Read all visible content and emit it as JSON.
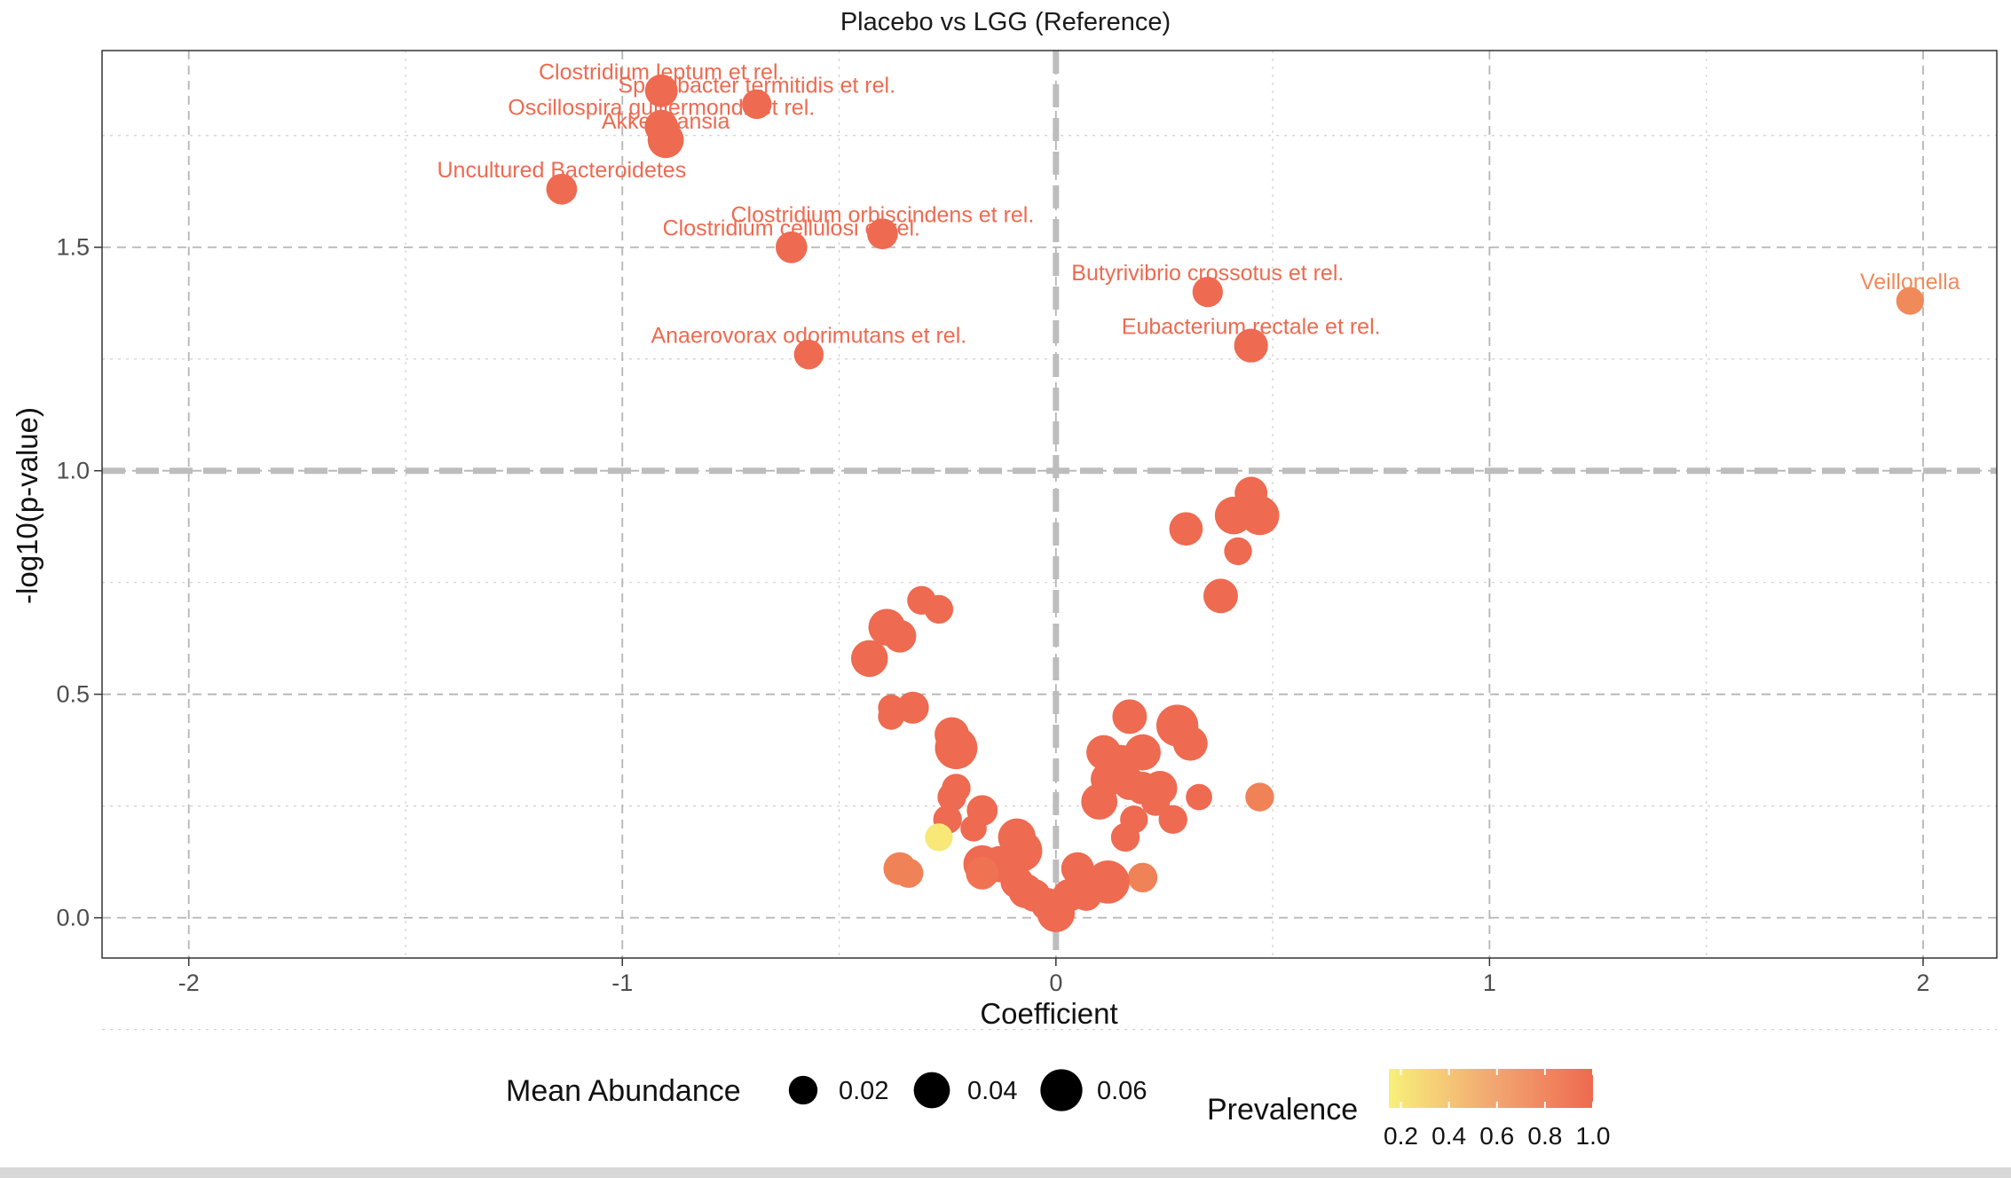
{
  "chart_data": {
    "type": "scatter",
    "title": "Placebo vs LGG (Reference)",
    "xlabel": "Coefficient",
    "ylabel": "-log10(p-value)",
    "xlim": [
      -2.2,
      2.17
    ],
    "ylim": [
      -0.09,
      1.94
    ],
    "x_ticks": [
      -2,
      -1,
      0,
      1,
      2
    ],
    "x_tick_labels": [
      "-2",
      "-1",
      "0",
      "1",
      "2"
    ],
    "y_ticks": [
      0.0,
      0.5,
      1.0,
      1.5
    ],
    "y_tick_labels": [
      "0.0",
      "0.5",
      "1.0",
      "1.5"
    ],
    "grid": true,
    "threshold_lines": {
      "x": 0,
      "y": 1.0,
      "color": "#bdbdbd"
    },
    "legend": {
      "position": "bottom",
      "size_title": "Mean Abundance",
      "size_entries": [
        {
          "label": "0.02",
          "value": 0.02
        },
        {
          "label": "0.04",
          "value": 0.04
        },
        {
          "label": "0.06",
          "value": 0.06
        }
      ],
      "color_title": "Prevalence",
      "color_tick_labels": [
        "0.2",
        "0.4",
        "0.6",
        "0.8",
        "1.0"
      ],
      "color_low": "#f8f07a",
      "color_high": "#ee6a50"
    },
    "points": [
      {
        "x": -0.91,
        "y": 1.85,
        "abundance": 0.03,
        "prevalence": 1.0,
        "label": "Clostridium leptum et rel."
      },
      {
        "x": -0.69,
        "y": 1.82,
        "abundance": 0.022,
        "prevalence": 1.0,
        "label": "Sporobacter termitidis et rel."
      },
      {
        "x": -0.91,
        "y": 1.77,
        "abundance": 0.032,
        "prevalence": 1.0,
        "label": "Oscillospira guillermondii et rel."
      },
      {
        "x": -0.9,
        "y": 1.74,
        "abundance": 0.04,
        "prevalence": 1.0,
        "label": "Akkermansia"
      },
      {
        "x": -1.14,
        "y": 1.63,
        "abundance": 0.025,
        "prevalence": 1.0,
        "label": "Uncultured Bacteroidetes"
      },
      {
        "x": -0.4,
        "y": 1.53,
        "abundance": 0.025,
        "prevalence": 1.0,
        "label": "Clostridium orbiscindens et rel."
      },
      {
        "x": -0.61,
        "y": 1.5,
        "abundance": 0.027,
        "prevalence": 1.0,
        "label": "Clostridium cellulosi et rel."
      },
      {
        "x": 0.35,
        "y": 1.4,
        "abundance": 0.024,
        "prevalence": 1.0,
        "label": "Butyrivibrio crossotus et rel."
      },
      {
        "x": 1.97,
        "y": 1.38,
        "abundance": 0.018,
        "prevalence": 0.8,
        "label": "Veillonella"
      },
      {
        "x": 0.45,
        "y": 1.28,
        "abundance": 0.033,
        "prevalence": 1.0,
        "label": "Eubacterium rectale et rel."
      },
      {
        "x": -0.57,
        "y": 1.26,
        "abundance": 0.022,
        "prevalence": 1.0,
        "label": "Anaerovorax odorimutans et rel."
      },
      {
        "x": 0.45,
        "y": 0.95,
        "abundance": 0.03,
        "prevalence": 1.0
      },
      {
        "x": 0.41,
        "y": 0.9,
        "abundance": 0.045,
        "prevalence": 1.0
      },
      {
        "x": 0.47,
        "y": 0.9,
        "abundance": 0.05,
        "prevalence": 1.0
      },
      {
        "x": 0.3,
        "y": 0.87,
        "abundance": 0.032,
        "prevalence": 1.0
      },
      {
        "x": 0.42,
        "y": 0.82,
        "abundance": 0.018,
        "prevalence": 1.0
      },
      {
        "x": 0.38,
        "y": 0.72,
        "abundance": 0.035,
        "prevalence": 1.0
      },
      {
        "x": -0.31,
        "y": 0.71,
        "abundance": 0.02,
        "prevalence": 1.0
      },
      {
        "x": -0.27,
        "y": 0.69,
        "abundance": 0.02,
        "prevalence": 1.0
      },
      {
        "x": -0.39,
        "y": 0.65,
        "abundance": 0.042,
        "prevalence": 1.0
      },
      {
        "x": -0.36,
        "y": 0.63,
        "abundance": 0.03,
        "prevalence": 1.0
      },
      {
        "x": -0.43,
        "y": 0.58,
        "abundance": 0.042,
        "prevalence": 1.0
      },
      {
        "x": -0.38,
        "y": 0.47,
        "abundance": 0.015,
        "prevalence": 1.0
      },
      {
        "x": -0.33,
        "y": 0.47,
        "abundance": 0.028,
        "prevalence": 1.0
      },
      {
        "x": -0.38,
        "y": 0.45,
        "abundance": 0.015,
        "prevalence": 1.0
      },
      {
        "x": 0.17,
        "y": 0.45,
        "abundance": 0.035,
        "prevalence": 1.0
      },
      {
        "x": 0.28,
        "y": 0.43,
        "abundance": 0.06,
        "prevalence": 1.0
      },
      {
        "x": -0.24,
        "y": 0.41,
        "abundance": 0.035,
        "prevalence": 1.0
      },
      {
        "x": -0.23,
        "y": 0.38,
        "abundance": 0.062,
        "prevalence": 1.0
      },
      {
        "x": 0.31,
        "y": 0.39,
        "abundance": 0.035,
        "prevalence": 1.0
      },
      {
        "x": 0.11,
        "y": 0.37,
        "abundance": 0.035,
        "prevalence": 1.0
      },
      {
        "x": 0.2,
        "y": 0.37,
        "abundance": 0.04,
        "prevalence": 1.0
      },
      {
        "x": 0.15,
        "y": 0.35,
        "abundance": 0.03,
        "prevalence": 1.0
      },
      {
        "x": 0.12,
        "y": 0.31,
        "abundance": 0.035,
        "prevalence": 1.0
      },
      {
        "x": 0.17,
        "y": 0.3,
        "abundance": 0.03,
        "prevalence": 1.0
      },
      {
        "x": 0.2,
        "y": 0.29,
        "abundance": 0.03,
        "prevalence": 1.0
      },
      {
        "x": 0.24,
        "y": 0.29,
        "abundance": 0.035,
        "prevalence": 1.0
      },
      {
        "x": -0.23,
        "y": 0.29,
        "abundance": 0.02,
        "prevalence": 1.0
      },
      {
        "x": -0.24,
        "y": 0.27,
        "abundance": 0.02,
        "prevalence": 1.0
      },
      {
        "x": 0.33,
        "y": 0.27,
        "abundance": 0.015,
        "prevalence": 1.0
      },
      {
        "x": 0.47,
        "y": 0.27,
        "abundance": 0.02,
        "prevalence": 0.85
      },
      {
        "x": 0.1,
        "y": 0.26,
        "abundance": 0.04,
        "prevalence": 1.0
      },
      {
        "x": 0.23,
        "y": 0.26,
        "abundance": 0.02,
        "prevalence": 1.0
      },
      {
        "x": -0.17,
        "y": 0.24,
        "abundance": 0.025,
        "prevalence": 1.0
      },
      {
        "x": -0.25,
        "y": 0.22,
        "abundance": 0.02,
        "prevalence": 1.0
      },
      {
        "x": 0.18,
        "y": 0.22,
        "abundance": 0.018,
        "prevalence": 1.0
      },
      {
        "x": 0.27,
        "y": 0.22,
        "abundance": 0.02,
        "prevalence": 1.0
      },
      {
        "x": -0.19,
        "y": 0.2,
        "abundance": 0.015,
        "prevalence": 1.0
      },
      {
        "x": -0.09,
        "y": 0.18,
        "abundance": 0.045,
        "prevalence": 1.0
      },
      {
        "x": 0.16,
        "y": 0.18,
        "abundance": 0.02,
        "prevalence": 1.0
      },
      {
        "x": -0.27,
        "y": 0.18,
        "abundance": 0.018,
        "prevalence": 0.2
      },
      {
        "x": -0.08,
        "y": 0.15,
        "abundance": 0.06,
        "prevalence": 1.0
      },
      {
        "x": -0.17,
        "y": 0.12,
        "abundance": 0.045,
        "prevalence": 1.0
      },
      {
        "x": -0.13,
        "y": 0.12,
        "abundance": 0.04,
        "prevalence": 1.0
      },
      {
        "x": -0.36,
        "y": 0.11,
        "abundance": 0.03,
        "prevalence": 0.85
      },
      {
        "x": 0.05,
        "y": 0.11,
        "abundance": 0.03,
        "prevalence": 1.0
      },
      {
        "x": -0.17,
        "y": 0.1,
        "abundance": 0.03,
        "prevalence": 0.95
      },
      {
        "x": -0.34,
        "y": 0.1,
        "abundance": 0.022,
        "prevalence": 0.85
      },
      {
        "x": 0.2,
        "y": 0.09,
        "abundance": 0.022,
        "prevalence": 0.85
      },
      {
        "x": 0.12,
        "y": 0.08,
        "abundance": 0.065,
        "prevalence": 1.0
      },
      {
        "x": -0.09,
        "y": 0.08,
        "abundance": 0.03,
        "prevalence": 1.0
      },
      {
        "x": -0.07,
        "y": 0.06,
        "abundance": 0.035,
        "prevalence": 1.0
      },
      {
        "x": -0.05,
        "y": 0.05,
        "abundance": 0.03,
        "prevalence": 1.0
      },
      {
        "x": 0.07,
        "y": 0.05,
        "abundance": 0.025,
        "prevalence": 1.0
      },
      {
        "x": 0.03,
        "y": 0.05,
        "abundance": 0.03,
        "prevalence": 1.0
      },
      {
        "x": -0.02,
        "y": 0.03,
        "abundance": 0.03,
        "prevalence": 1.0
      },
      {
        "x": 0.0,
        "y": 0.01,
        "abundance": 0.045,
        "prevalence": 1.0
      }
    ]
  }
}
